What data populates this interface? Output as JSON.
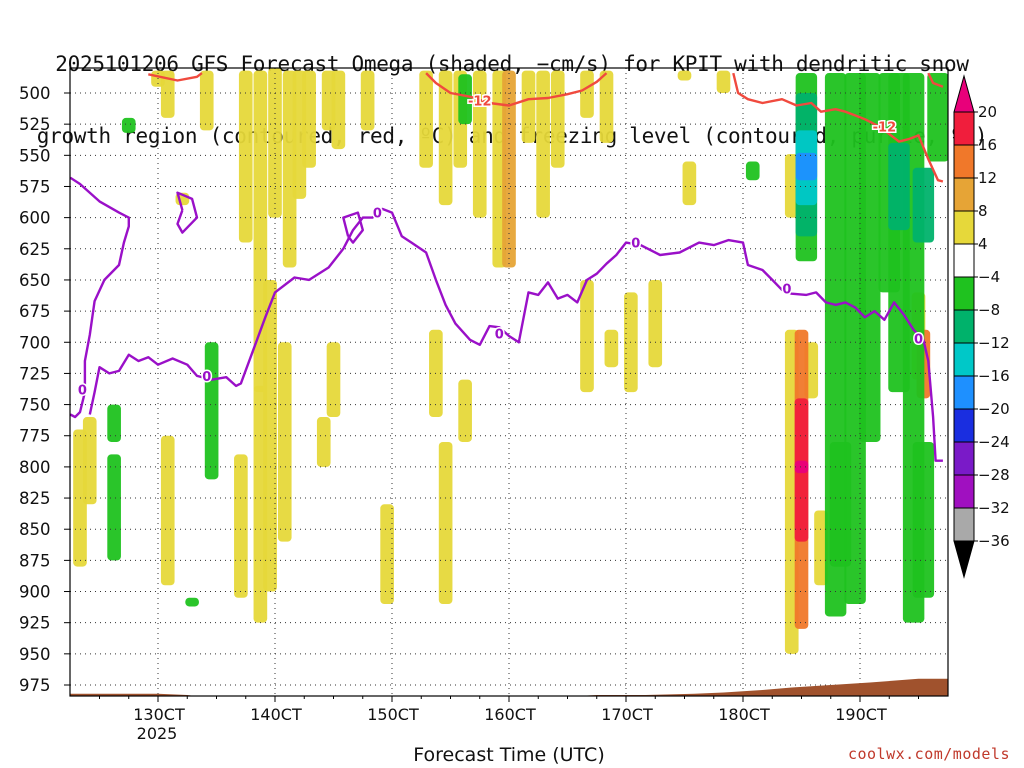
{
  "chart_data": {
    "type": "heatmap",
    "title_line1": "2025101206 GFS Forecast Omega (shaded, −cm/s) for KPIT with dendritic snow",
    "title_line2": "growth region (contoured, red, ºC) and freezing level (contoured, purple, ºC)",
    "xlabel": "Forecast Time (UTC)",
    "credit": "coolwx.com/models",
    "yaxis": {
      "unit": "hPa",
      "ticks": [
        "500",
        "525",
        "550",
        "575",
        "600",
        "625",
        "650",
        "675",
        "700",
        "725",
        "750",
        "775",
        "800",
        "825",
        "850",
        "875",
        "900",
        "925",
        "950",
        "975"
      ],
      "range": [
        480,
        995
      ]
    },
    "xaxis": {
      "ticks": [
        {
          "label": "130CT",
          "sub": "2025",
          "h": 0
        },
        {
          "label": "140CT",
          "sub": "",
          "h": 24
        },
        {
          "label": "150CT",
          "sub": "",
          "h": 48
        },
        {
          "label": "160CT",
          "sub": "",
          "h": 72
        },
        {
          "label": "170CT",
          "sub": "",
          "h": 96
        },
        {
          "label": "180CT",
          "sub": "",
          "h": 120
        },
        {
          "label": "190CT",
          "sub": "",
          "h": 144
        }
      ],
      "range_hours": [
        -18,
        162
      ]
    },
    "colorbar": {
      "labels": [
        "20",
        "16",
        "12",
        "8",
        "4",
        "−4",
        "−8",
        "−12",
        "−16",
        "−20",
        "−24",
        "−28",
        "−32",
        "−36"
      ],
      "colors": [
        "#e8007a",
        "#f01e3c",
        "#f0782a",
        "#e6a436",
        "#e6d83a",
        "#ffffff",
        "#1fc21f",
        "#00b26b",
        "#00c8c8",
        "#1e90ff",
        "#1a2ee0",
        "#7a1ac8",
        "#a010c0",
        "#a9a9a9",
        "#000000"
      ]
    },
    "freezing_level": {
      "label": "0",
      "color": "#9a10c8",
      "points": [
        [
          -18,
          568
        ],
        [
          -16,
          573
        ],
        [
          -12,
          587
        ],
        [
          -8,
          596
        ],
        [
          -6,
          600
        ],
        [
          -6,
          607
        ],
        [
          -7,
          620
        ],
        [
          -8,
          638
        ],
        [
          -11,
          650
        ],
        [
          -13,
          667
        ],
        [
          -14,
          694
        ],
        [
          -15,
          715
        ],
        [
          -15,
          740
        ],
        [
          -16,
          756
        ],
        [
          -17,
          760
        ],
        [
          -18,
          758
        ]
      ]
    },
    "freezing_level_2": {
      "points": [
        [
          -14,
          758
        ],
        [
          -13,
          740
        ],
        [
          -12,
          720
        ],
        [
          -10,
          725
        ],
        [
          -8,
          723
        ],
        [
          -6,
          710
        ],
        [
          -4,
          715
        ],
        [
          -2,
          712
        ],
        [
          0,
          718
        ],
        [
          3,
          713
        ],
        [
          6,
          718
        ],
        [
          8,
          727
        ],
        [
          11,
          730
        ],
        [
          14,
          728
        ],
        [
          16,
          735
        ],
        [
          17,
          733
        ],
        [
          19,
          712
        ],
        [
          22,
          680
        ],
        [
          24,
          660
        ],
        [
          28,
          648
        ],
        [
          31,
          650
        ],
        [
          35,
          640
        ],
        [
          38,
          625
        ],
        [
          40,
          610
        ],
        [
          42,
          600
        ],
        [
          44,
          600
        ],
        [
          46,
          593
        ],
        [
          48,
          596
        ],
        [
          50,
          615
        ],
        [
          52,
          620
        ],
        [
          55,
          628
        ],
        [
          57,
          650
        ],
        [
          59,
          670
        ],
        [
          61,
          685
        ],
        [
          64,
          698
        ],
        [
          66,
          702
        ],
        [
          68,
          687
        ],
        [
          70,
          688
        ],
        [
          72,
          695
        ],
        [
          74,
          700
        ],
        [
          76,
          660
        ],
        [
          78,
          662
        ],
        [
          80,
          652
        ],
        [
          82,
          665
        ],
        [
          84,
          662
        ],
        [
          86,
          668
        ],
        [
          88,
          650
        ],
        [
          90,
          645
        ],
        [
          92,
          637
        ],
        [
          94,
          630
        ],
        [
          96,
          620
        ],
        [
          99,
          622
        ],
        [
          103,
          630
        ],
        [
          107,
          628
        ],
        [
          111,
          620
        ],
        [
          114,
          622
        ],
        [
          117,
          618
        ],
        [
          120,
          620
        ],
        [
          121,
          638
        ],
        [
          124,
          642
        ],
        [
          126,
          650
        ],
        [
          128,
          658
        ],
        [
          130,
          661
        ],
        [
          133,
          662
        ],
        [
          135,
          660
        ],
        [
          137,
          668
        ],
        [
          139,
          670
        ],
        [
          141,
          668
        ],
        [
          143,
          672
        ],
        [
          145,
          680
        ],
        [
          147,
          675
        ],
        [
          149,
          682
        ],
        [
          151,
          668
        ],
        [
          153,
          678
        ],
        [
          155,
          690
        ],
        [
          157,
          698
        ],
        [
          158,
          715
        ],
        [
          159,
          760
        ],
        [
          159.5,
          795
        ],
        [
          161,
          795
        ]
      ]
    },
    "dgz_minus12": {
      "label": "-12",
      "color": "#f04a3e",
      "points": [
        [
          -2,
          485
        ],
        [
          4,
          490
        ],
        [
          8,
          487
        ],
        [
          9,
          484
        ]
      ]
    },
    "dgz_minus12_b": {
      "points": [
        [
          55,
          484
        ],
        [
          57,
          492
        ],
        [
          60,
          500
        ],
        [
          64,
          503
        ],
        [
          68,
          508
        ],
        [
          72,
          510
        ],
        [
          76,
          505
        ],
        [
          80,
          504
        ],
        [
          84,
          501
        ],
        [
          87,
          498
        ],
        [
          90,
          491
        ],
        [
          92,
          484
        ]
      ]
    },
    "dgz_minus12_c": {
      "points": [
        [
          118,
          484
        ],
        [
          119,
          500
        ],
        [
          121,
          505
        ],
        [
          124,
          508
        ],
        [
          128,
          505
        ],
        [
          131,
          510
        ],
        [
          134,
          508
        ],
        [
          136,
          515
        ],
        [
          139,
          513
        ],
        [
          141,
          515
        ],
        [
          143,
          518
        ],
        [
          145,
          521
        ],
        [
          148,
          527
        ],
        [
          150,
          533
        ],
        [
          152,
          539
        ],
        [
          154,
          537
        ],
        [
          156,
          534
        ],
        [
          158,
          553
        ],
        [
          160,
          570
        ],
        [
          161,
          571
        ]
      ]
    },
    "omega_patches": [
      {
        "h": 0,
        "p1": 482,
        "p2": 495,
        "v": 6
      },
      {
        "h": 2,
        "p1": 482,
        "p2": 520,
        "v": 6
      },
      {
        "h": 10,
        "p1": 482,
        "p2": 530,
        "v": 5
      },
      {
        "h": 18,
        "p1": 482,
        "p2": 620,
        "v": 5
      },
      {
        "h": 21,
        "p1": 482,
        "p2": 740,
        "v": 6
      },
      {
        "h": 24,
        "p1": 480,
        "p2": 600,
        "v": 5
      },
      {
        "h": 27,
        "p1": 482,
        "p2": 640,
        "v": 6
      },
      {
        "h": 29,
        "p1": 482,
        "p2": 585,
        "v": 5
      },
      {
        "h": 31,
        "p1": 482,
        "p2": 560,
        "v": 6
      },
      {
        "h": 35,
        "p1": 482,
        "p2": 530,
        "v": 6
      },
      {
        "h": 37,
        "p1": 482,
        "p2": 545,
        "v": 6
      },
      {
        "h": 43,
        "p1": 482,
        "p2": 530,
        "v": 5
      },
      {
        "h": 55,
        "p1": 482,
        "p2": 560,
        "v": 5
      },
      {
        "h": 59,
        "p1": 482,
        "p2": 590,
        "v": 5
      },
      {
        "h": 62,
        "p1": 482,
        "p2": 560,
        "v": 5
      },
      {
        "h": 66,
        "p1": 482,
        "p2": 600,
        "v": 5
      },
      {
        "h": 70,
        "p1": 482,
        "p2": 640,
        "v": 5
      },
      {
        "h": 72,
        "p1": 482,
        "p2": 640,
        "v": 11
      },
      {
        "h": 76,
        "p1": 482,
        "p2": 540,
        "v": 6
      },
      {
        "h": 79,
        "p1": 482,
        "p2": 600,
        "v": 5
      },
      {
        "h": 82,
        "p1": 482,
        "p2": 560,
        "v": 6
      },
      {
        "h": 88,
        "p1": 482,
        "p2": 520,
        "v": 5
      },
      {
        "h": 92,
        "p1": 482,
        "p2": 540,
        "v": 5
      },
      {
        "h": 108,
        "p1": 482,
        "p2": 490,
        "v": 5
      },
      {
        "h": 116,
        "p1": 482,
        "p2": 500,
        "v": 6
      },
      {
        "h": 109,
        "p1": 555,
        "p2": 590,
        "v": 5
      },
      {
        "h": 130,
        "p1": 549,
        "p2": 600,
        "v": 5
      },
      {
        "h": 5,
        "p1": 580,
        "p2": 590,
        "v": 5
      },
      {
        "h": -16,
        "p1": 770,
        "p2": 880,
        "v": 5
      },
      {
        "h": -14,
        "p1": 760,
        "p2": 830,
        "v": 5
      },
      {
        "h": 2,
        "p1": 775,
        "p2": 895,
        "v": 5
      },
      {
        "h": 17,
        "p1": 790,
        "p2": 905,
        "v": 5
      },
      {
        "h": 21,
        "p1": 735,
        "p2": 925,
        "v": 6
      },
      {
        "h": 23,
        "p1": 650,
        "p2": 900,
        "v": 5
      },
      {
        "h": 26,
        "p1": 700,
        "p2": 860,
        "v": 5
      },
      {
        "h": 34,
        "p1": 760,
        "p2": 800,
        "v": 5
      },
      {
        "h": 36,
        "p1": 700,
        "p2": 760,
        "v": 5
      },
      {
        "h": 47,
        "p1": 830,
        "p2": 910,
        "v": 5
      },
      {
        "h": 57,
        "p1": 690,
        "p2": 760,
        "v": 5
      },
      {
        "h": 59,
        "p1": 780,
        "p2": 910,
        "v": 5
      },
      {
        "h": 63,
        "p1": 730,
        "p2": 780,
        "v": 5
      },
      {
        "h": 88,
        "p1": 650,
        "p2": 740,
        "v": 5
      },
      {
        "h": 93,
        "p1": 690,
        "p2": 720,
        "v": 5
      },
      {
        "h": 97,
        "p1": 660,
        "p2": 740,
        "v": 5
      },
      {
        "h": 102,
        "p1": 650,
        "p2": 720,
        "v": 5
      },
      {
        "h": 156,
        "p1": 660,
        "p2": 730,
        "v": 5
      },
      {
        "h": 157,
        "p1": 690,
        "p2": 745,
        "v": 12
      },
      {
        "h": 130,
        "p1": 690,
        "p2": 950,
        "v": 5
      },
      {
        "h": 136,
        "p1": 835,
        "p2": 895,
        "v": 6
      },
      {
        "h": 134,
        "p1": 700,
        "p2": 745,
        "v": 5
      },
      {
        "h": 132,
        "p1": 690,
        "p2": 930,
        "v": 12
      },
      {
        "h": 132,
        "p1": 745,
        "p2": 860,
        "v": 18
      },
      {
        "h": 132,
        "p1": 795,
        "p2": 805,
        "v": 21
      },
      {
        "h": -6,
        "p1": 520,
        "p2": 532,
        "v": -8
      },
      {
        "h": 11,
        "p1": 700,
        "p2": 810,
        "v": -8
      },
      {
        "h": -9,
        "p1": 750,
        "p2": 780,
        "v": -8
      },
      {
        "h": -9,
        "p1": 790,
        "p2": 875,
        "v": -8
      },
      {
        "h": 63,
        "p1": 485,
        "p2": 525,
        "v": -8
      },
      {
        "h": 7,
        "p1": 905,
        "p2": 912,
        "v": -8
      },
      {
        "h": 122,
        "p1": 555,
        "p2": 570,
        "v": -8
      },
      {
        "h": 133,
        "p1": 484,
        "p2": 635,
        "v": -8
      },
      {
        "h": 133,
        "p1": 500,
        "p2": 615,
        "v": -14
      },
      {
        "h": 133,
        "p1": 530,
        "p2": 590,
        "v": -18
      },
      {
        "h": 133,
        "p1": 548,
        "p2": 570,
        "v": -22
      },
      {
        "h": 139,
        "p1": 484,
        "p2": 920,
        "v": -8
      },
      {
        "h": 140,
        "p1": 780,
        "p2": 880,
        "v": -11
      },
      {
        "h": 143,
        "p1": 484,
        "p2": 910,
        "v": -8
      },
      {
        "h": 146,
        "p1": 484,
        "p2": 780,
        "v": -8
      },
      {
        "h": 150,
        "p1": 484,
        "p2": 660,
        "v": -9
      },
      {
        "h": 152,
        "p1": 484,
        "p2": 740,
        "v": -8
      },
      {
        "h": 155,
        "p1": 484,
        "p2": 925,
        "v": -8
      },
      {
        "h": 160,
        "p1": 484,
        "p2": 555,
        "v": -8
      },
      {
        "h": 152,
        "p1": 540,
        "p2": 610,
        "v": -13
      },
      {
        "h": 157,
        "p1": 560,
        "p2": 620,
        "v": -14
      },
      {
        "h": 157,
        "p1": 780,
        "p2": 905,
        "v": -8
      }
    ],
    "terrain_color": "#a0522d",
    "grid": true
  }
}
